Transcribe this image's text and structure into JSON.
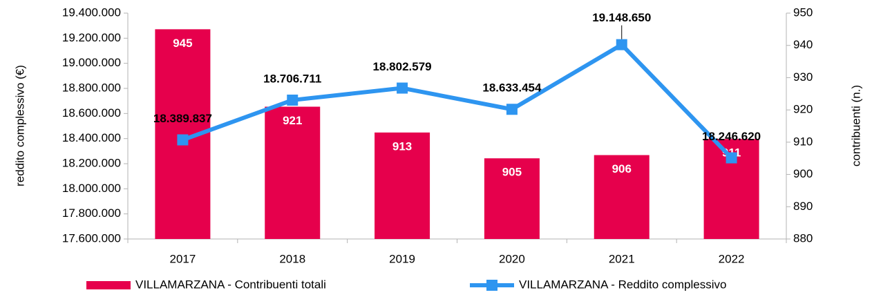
{
  "chart_data": {
    "type": "bar-line",
    "y_label": "reddito complessivo (€)",
    "y2_label": "contribuenti (n.)",
    "categories": [
      "2017",
      "2018",
      "2019",
      "2020",
      "2021",
      "2022"
    ],
    "series": [
      {
        "name": "VILLAMARZANA - Contribuenti totali",
        "type": "bar",
        "axis": "y2",
        "color": "#e6004c",
        "values": [
          945,
          921,
          913,
          905,
          906,
          911
        ]
      },
      {
        "name": "VILLAMARZANA - Reddito complessivo",
        "type": "line",
        "axis": "y",
        "color": "#2e95f0",
        "values": [
          18389837,
          18706711,
          18802579,
          18633454,
          19148650,
          18246620
        ],
        "value_labels": [
          "18.389.837",
          "18.706.711",
          "18.802.579",
          "18.633.454",
          "19.148.650",
          "18.246.620"
        ]
      }
    ],
    "ylim": [
      17600000,
      19400000
    ],
    "yticks": [
      {
        "value": 17600000,
        "label": "17.600.000"
      },
      {
        "value": 17800000,
        "label": "17.800.000"
      },
      {
        "value": 18000000,
        "label": "18.000.000"
      },
      {
        "value": 18200000,
        "label": "18.200.000"
      },
      {
        "value": 18400000,
        "label": "18.400.000"
      },
      {
        "value": 18600000,
        "label": "18.600.000"
      },
      {
        "value": 18800000,
        "label": "18.800.000"
      },
      {
        "value": 19000000,
        "label": "19.000.000"
      },
      {
        "value": 19200000,
        "label": "19.200.000"
      },
      {
        "value": 19400000,
        "label": "19.400.000"
      }
    ],
    "y2lim": [
      880,
      950
    ],
    "y2ticks": [
      880,
      890,
      900,
      910,
      920,
      930,
      940,
      950
    ],
    "grid": false
  }
}
